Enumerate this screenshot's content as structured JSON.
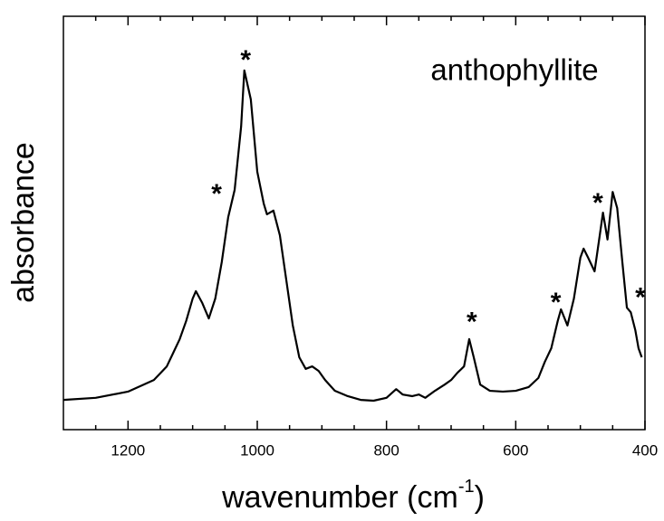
{
  "chart_data": {
    "type": "line",
    "annotation": "anthophyllite",
    "x_label": [
      "wavenumber (cm",
      "-1",
      ")"
    ],
    "y_label": "absorbance",
    "xlim": [
      1300,
      400
    ],
    "ylim": [
      0,
      1
    ],
    "xticks": [
      1200,
      1000,
      800,
      600,
      400
    ],
    "xminor_ticks": [
      1250,
      1150,
      1100,
      1050,
      950,
      900,
      850,
      750,
      700,
      650,
      550,
      500,
      450
    ],
    "x": [
      1300,
      1250,
      1200,
      1160,
      1140,
      1130,
      1120,
      1110,
      1100,
      1095,
      1085,
      1075,
      1065,
      1055,
      1045,
      1035,
      1025,
      1020,
      1010,
      1000,
      990,
      985,
      975,
      965,
      955,
      945,
      935,
      925,
      915,
      905,
      895,
      880,
      860,
      840,
      820,
      800,
      785,
      775,
      760,
      750,
      740,
      725,
      710,
      700,
      690,
      680,
      672,
      665,
      655,
      640,
      620,
      600,
      580,
      565,
      555,
      545,
      535,
      530,
      520,
      510,
      500,
      495,
      488,
      478,
      470,
      465,
      458,
      450,
      443,
      435,
      428,
      422,
      415,
      410,
      405
    ],
    "series": [
      {
        "color": "#000000",
        "values": [
          0.072,
          0.077,
          0.092,
          0.12,
          0.153,
          0.186,
          0.219,
          0.263,
          0.317,
          0.335,
          0.306,
          0.269,
          0.317,
          0.405,
          0.514,
          0.58,
          0.733,
          0.869,
          0.799,
          0.624,
          0.547,
          0.521,
          0.53,
          0.47,
          0.361,
          0.252,
          0.175,
          0.147,
          0.153,
          0.142,
          0.12,
          0.094,
          0.081,
          0.072,
          0.07,
          0.077,
          0.098,
          0.085,
          0.081,
          0.085,
          0.077,
          0.094,
          0.109,
          0.12,
          0.138,
          0.153,
          0.219,
          0.175,
          0.109,
          0.094,
          0.092,
          0.094,
          0.103,
          0.125,
          0.164,
          0.197,
          0.263,
          0.291,
          0.252,
          0.317,
          0.416,
          0.438,
          0.416,
          0.383,
          0.47,
          0.525,
          0.46,
          0.575,
          0.536,
          0.405,
          0.295,
          0.284,
          0.241,
          0.197,
          0.175
        ]
      }
    ],
    "markers": [
      {
        "text": "*",
        "x": 1018,
        "y": 0.908
      },
      {
        "text": "*",
        "x": 1063,
        "y": 0.584
      },
      {
        "text": "*",
        "x": 668,
        "y": 0.274
      },
      {
        "text": "*",
        "x": 538,
        "y": 0.322
      },
      {
        "text": "*",
        "x": 473,
        "y": 0.562
      },
      {
        "text": "*",
        "x": 407,
        "y": 0.333
      }
    ]
  }
}
